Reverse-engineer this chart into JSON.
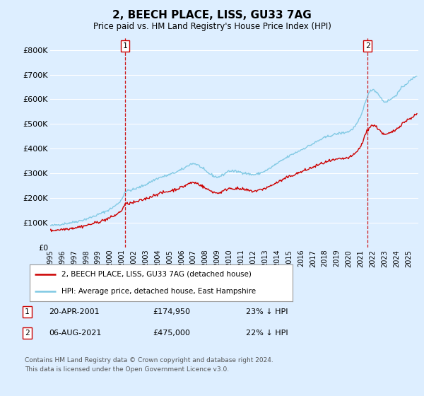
{
  "title": "2, BEECH PLACE, LISS, GU33 7AG",
  "subtitle": "Price paid vs. HM Land Registry's House Price Index (HPI)",
  "ylabel_ticks": [
    "£0",
    "£100K",
    "£200K",
    "£300K",
    "£400K",
    "£500K",
    "£600K",
    "£700K",
    "£800K"
  ],
  "ytick_values": [
    0,
    100000,
    200000,
    300000,
    400000,
    500000,
    600000,
    700000,
    800000
  ],
  "ylim": [
    0,
    850000
  ],
  "xlim_start": 1995.0,
  "xlim_end": 2025.8,
  "hpi_color": "#7ec8e3",
  "price_color": "#cc0000",
  "dashed_color": "#cc0000",
  "background_color": "#ddeeff",
  "plot_bg_color": "#ddeeff",
  "grid_color": "#ffffff",
  "sale1_year": 2001.3,
  "sale1_price": 174950,
  "sale2_year": 2021.58,
  "sale2_price": 475000,
  "legend_label_price": "2, BEECH PLACE, LISS, GU33 7AG (detached house)",
  "legend_label_hpi": "HPI: Average price, detached house, East Hampshire",
  "footer": "Contains HM Land Registry data © Crown copyright and database right 2024.\nThis data is licensed under the Open Government Licence v3.0.",
  "xtick_years": [
    1995,
    1996,
    1997,
    1998,
    1999,
    2000,
    2001,
    2002,
    2003,
    2004,
    2005,
    2006,
    2007,
    2008,
    2009,
    2010,
    2011,
    2012,
    2013,
    2014,
    2015,
    2016,
    2017,
    2018,
    2019,
    2020,
    2021,
    2022,
    2023,
    2024,
    2025
  ]
}
